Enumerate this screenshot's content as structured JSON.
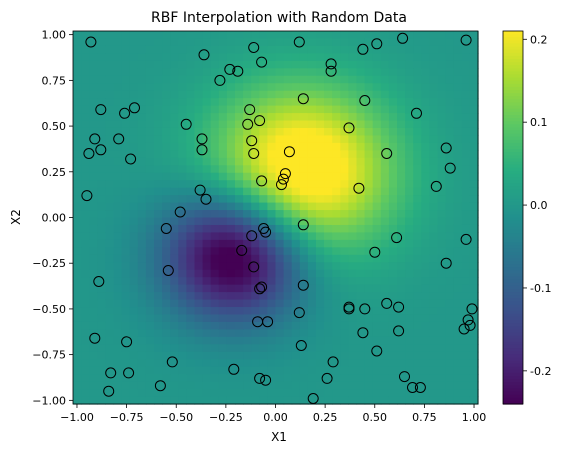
{
  "chart_data": {
    "type": "heatmap",
    "title": "RBF Interpolation with Random Data",
    "xlabel": "X1",
    "ylabel": "X2",
    "xlim": [
      -1.02,
      1.02
    ],
    "ylim": [
      -1.02,
      1.02
    ],
    "grid": false,
    "colormap": "viridis",
    "colorbar": {
      "vmin": -0.24,
      "vmax": 0.21,
      "ticks": [
        "-0.2",
        "-0.1",
        "0.0",
        "0.1",
        "0.2"
      ],
      "tick_values": [
        -0.2,
        -0.1,
        0.0,
        0.1,
        0.2
      ]
    },
    "x_ticks": [
      "−1.00",
      "−0.75",
      "−0.50",
      "−0.25",
      "0.00",
      "0.25",
      "0.50",
      "0.75",
      "1.00"
    ],
    "x_tick_values": [
      -1.0,
      -0.75,
      -0.5,
      -0.25,
      0.0,
      0.25,
      0.5,
      0.75,
      1.0
    ],
    "y_ticks": [
      "1.00",
      "0.75",
      "0.50",
      "0.25",
      "0.00",
      "−0.25",
      "−0.50",
      "−0.75",
      "−1.00"
    ],
    "y_tick_values": [
      1.0,
      0.75,
      0.5,
      0.25,
      0.0,
      -0.25,
      -0.5,
      -0.75,
      -1.0
    ],
    "grid_resolution": 50,
    "field_components": [
      {
        "cx": 0.13,
        "cy": 0.25,
        "amplitude": 0.27,
        "sx": 0.32,
        "sy": 0.32
      },
      {
        "cx": -0.2,
        "cy": -0.2,
        "amplitude": -0.3,
        "sx": 0.25,
        "sy": 0.25
      }
    ],
    "scatter_points": [
      {
        "x": -0.93,
        "y": 0.96
      },
      {
        "x": -0.36,
        "y": 0.89
      },
      {
        "x": -0.11,
        "y": 0.93
      },
      {
        "x": 0.12,
        "y": 0.96
      },
      {
        "x": 0.28,
        "y": 0.84
      },
      {
        "x": 0.51,
        "y": 0.95
      },
      {
        "x": 0.44,
        "y": 0.92
      },
      {
        "x": 0.64,
        "y": 0.98
      },
      {
        "x": 0.96,
        "y": 0.97
      },
      {
        "x": -0.23,
        "y": 0.81
      },
      {
        "x": -0.19,
        "y": 0.8
      },
      {
        "x": -0.07,
        "y": 0.85
      },
      {
        "x": -0.28,
        "y": 0.75
      },
      {
        "x": 0.28,
        "y": 0.8
      },
      {
        "x": -0.88,
        "y": 0.59
      },
      {
        "x": -0.71,
        "y": 0.6
      },
      {
        "x": -0.76,
        "y": 0.57
      },
      {
        "x": -0.13,
        "y": 0.59
      },
      {
        "x": 0.14,
        "y": 0.65
      },
      {
        "x": 0.45,
        "y": 0.64
      },
      {
        "x": 0.71,
        "y": 0.57
      },
      {
        "x": -0.45,
        "y": 0.51
      },
      {
        "x": -0.14,
        "y": 0.51
      },
      {
        "x": -0.08,
        "y": 0.53
      },
      {
        "x": 0.37,
        "y": 0.49
      },
      {
        "x": -0.91,
        "y": 0.43
      },
      {
        "x": -0.79,
        "y": 0.43
      },
      {
        "x": -0.37,
        "y": 0.43
      },
      {
        "x": -0.12,
        "y": 0.42
      },
      {
        "x": -0.94,
        "y": 0.35
      },
      {
        "x": -0.88,
        "y": 0.37
      },
      {
        "x": -0.73,
        "y": 0.32
      },
      {
        "x": -0.37,
        "y": 0.37
      },
      {
        "x": -0.11,
        "y": 0.35
      },
      {
        "x": 0.07,
        "y": 0.36
      },
      {
        "x": 0.56,
        "y": 0.35
      },
      {
        "x": 0.86,
        "y": 0.38
      },
      {
        "x": 0.88,
        "y": 0.27
      },
      {
        "x": 0.05,
        "y": 0.24
      },
      {
        "x": 0.04,
        "y": 0.21
      },
      {
        "x": -0.07,
        "y": 0.2
      },
      {
        "x": 0.03,
        "y": 0.18
      },
      {
        "x": 0.42,
        "y": 0.16
      },
      {
        "x": 0.81,
        "y": 0.17
      },
      {
        "x": -0.95,
        "y": 0.12
      },
      {
        "x": -0.38,
        "y": 0.15
      },
      {
        "x": -0.35,
        "y": 0.1
      },
      {
        "x": -0.48,
        "y": 0.03
      },
      {
        "x": 0.14,
        "y": -0.04
      },
      {
        "x": -0.55,
        "y": -0.06
      },
      {
        "x": -0.06,
        "y": -0.06
      },
      {
        "x": -0.05,
        "y": -0.08
      },
      {
        "x": -0.12,
        "y": -0.1
      },
      {
        "x": 0.61,
        "y": -0.11
      },
      {
        "x": 0.96,
        "y": -0.12
      },
      {
        "x": -0.17,
        "y": -0.18
      },
      {
        "x": 0.5,
        "y": -0.19
      },
      {
        "x": 0.86,
        "y": -0.25
      },
      {
        "x": -0.11,
        "y": -0.27
      },
      {
        "x": -0.54,
        "y": -0.29
      },
      {
        "x": -0.89,
        "y": -0.35
      },
      {
        "x": 0.14,
        "y": -0.37
      },
      {
        "x": -0.07,
        "y": -0.38
      },
      {
        "x": -0.08,
        "y": -0.39
      },
      {
        "x": 0.56,
        "y": -0.47
      },
      {
        "x": 0.37,
        "y": -0.49
      },
      {
        "x": 0.37,
        "y": -0.5
      },
      {
        "x": 0.45,
        "y": -0.5
      },
      {
        "x": 0.62,
        "y": -0.49
      },
      {
        "x": 0.99,
        "y": -0.5
      },
      {
        "x": 0.12,
        "y": -0.52
      },
      {
        "x": 0.97,
        "y": -0.56
      },
      {
        "x": -0.09,
        "y": -0.57
      },
      {
        "x": -0.04,
        "y": -0.57
      },
      {
        "x": 0.95,
        "y": -0.61
      },
      {
        "x": 0.98,
        "y": -0.59
      },
      {
        "x": 0.44,
        "y": -0.63
      },
      {
        "x": 0.62,
        "y": -0.62
      },
      {
        "x": -0.91,
        "y": -0.66
      },
      {
        "x": -0.75,
        "y": -0.68
      },
      {
        "x": 0.13,
        "y": -0.7
      },
      {
        "x": 0.51,
        "y": -0.73
      },
      {
        "x": -0.52,
        "y": -0.79
      },
      {
        "x": 0.29,
        "y": -0.79
      },
      {
        "x": -0.83,
        "y": -0.85
      },
      {
        "x": -0.74,
        "y": -0.85
      },
      {
        "x": -0.21,
        "y": -0.83
      },
      {
        "x": -0.08,
        "y": -0.88
      },
      {
        "x": -0.05,
        "y": -0.89
      },
      {
        "x": 0.26,
        "y": -0.88
      },
      {
        "x": 0.65,
        "y": -0.87
      },
      {
        "x": -0.58,
        "y": -0.92
      },
      {
        "x": 0.69,
        "y": -0.93
      },
      {
        "x": 0.73,
        "y": -0.93
      },
      {
        "x": -0.84,
        "y": -0.95
      },
      {
        "x": 0.19,
        "y": -0.99
      }
    ]
  }
}
